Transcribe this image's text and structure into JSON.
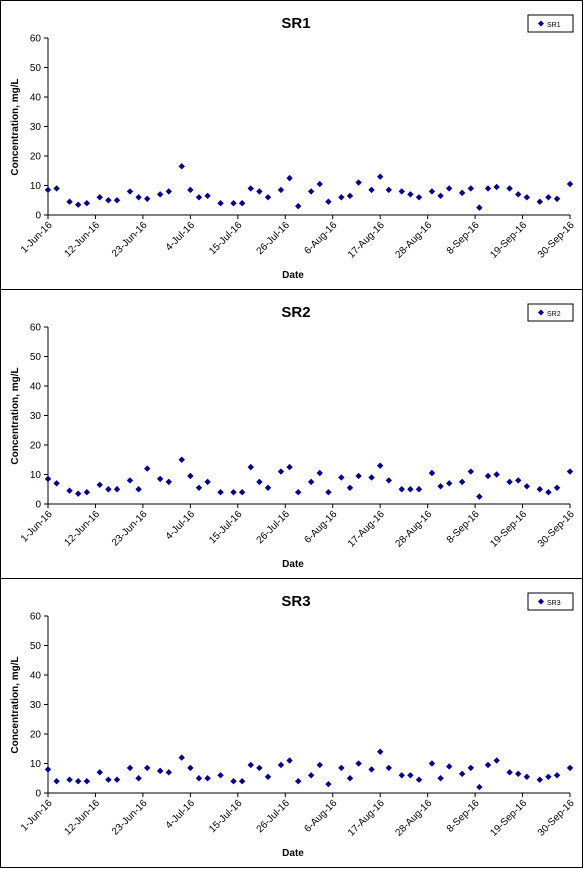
{
  "chart_data": [
    {
      "type": "scatter",
      "title": "SR1",
      "xlabel": "Date",
      "ylabel": "Concentration, mg/L",
      "ylim": [
        0,
        60
      ],
      "yticks": [
        "0",
        "10",
        "20",
        "30",
        "40",
        "50",
        "60"
      ],
      "xlim": [
        "2016-06-01",
        "2016-09-30"
      ],
      "xticks": [
        "1-Jun-16",
        "12-Jun-16",
        "23-Jun-16",
        "4-Jul-16",
        "15-Jul-16",
        "26-Jul-16",
        "6-Aug-16",
        "17-Aug-16",
        "28-Aug-16",
        "8-Sep-16",
        "19-Sep-16",
        "30-Sep-16"
      ],
      "legend": "top-right",
      "grid": false,
      "color": "#00008B",
      "series": [
        {
          "name": "SR1",
          "x": [
            "2016-06-01",
            "2016-06-03",
            "2016-06-06",
            "2016-06-08",
            "2016-06-10",
            "2016-06-13",
            "2016-06-15",
            "2016-06-17",
            "2016-06-20",
            "2016-06-22",
            "2016-06-24",
            "2016-06-27",
            "2016-06-29",
            "2016-07-02",
            "2016-07-04",
            "2016-07-06",
            "2016-07-08",
            "2016-07-11",
            "2016-07-14",
            "2016-07-16",
            "2016-07-18",
            "2016-07-20",
            "2016-07-22",
            "2016-07-25",
            "2016-07-27",
            "2016-07-29",
            "2016-08-01",
            "2016-08-03",
            "2016-08-05",
            "2016-08-08",
            "2016-08-10",
            "2016-08-12",
            "2016-08-15",
            "2016-08-17",
            "2016-08-19",
            "2016-08-22",
            "2016-08-24",
            "2016-08-26",
            "2016-08-29",
            "2016-08-31",
            "2016-09-02",
            "2016-09-05",
            "2016-09-07",
            "2016-09-09",
            "2016-09-11",
            "2016-09-13",
            "2016-09-16",
            "2016-09-18",
            "2016-09-20",
            "2016-09-23",
            "2016-09-25",
            "2016-09-27",
            "2016-09-30"
          ],
          "y": [
            8.5,
            9,
            4.5,
            3.5,
            4,
            6,
            5,
            5,
            8,
            6,
            5.5,
            7,
            8,
            16.5,
            8.5,
            6,
            6.5,
            4,
            4,
            4,
            9,
            8,
            6,
            8.5,
            12.5,
            3,
            8,
            10.5,
            4.5,
            6,
            6.5,
            11,
            8.5,
            13,
            8.5,
            8,
            7,
            6,
            8,
            6.5,
            9,
            7.5,
            9,
            2.5,
            9,
            9.5,
            9,
            7,
            6,
            4.5,
            6,
            5.5,
            10.5
          ]
        }
      ]
    },
    {
      "type": "scatter",
      "title": "SR2",
      "xlabel": "Date",
      "ylabel": "Concentration, mg/L",
      "ylim": [
        0,
        60
      ],
      "yticks": [
        "0",
        "10",
        "20",
        "30",
        "40",
        "50",
        "60"
      ],
      "xlim": [
        "2016-06-01",
        "2016-09-30"
      ],
      "xticks": [
        "1-Jun-16",
        "12-Jun-16",
        "23-Jun-16",
        "4-Jul-16",
        "15-Jul-16",
        "26-Jul-16",
        "6-Aug-16",
        "17-Aug-16",
        "28-Aug-16",
        "8-Sep-16",
        "19-Sep-16",
        "30-Sep-16"
      ],
      "legend": "top-right",
      "grid": false,
      "color": "#00008B",
      "series": [
        {
          "name": "SR2",
          "x": [
            "2016-06-01",
            "2016-06-03",
            "2016-06-06",
            "2016-06-08",
            "2016-06-10",
            "2016-06-13",
            "2016-06-15",
            "2016-06-17",
            "2016-06-20",
            "2016-06-22",
            "2016-06-24",
            "2016-06-27",
            "2016-06-29",
            "2016-07-02",
            "2016-07-04",
            "2016-07-06",
            "2016-07-08",
            "2016-07-11",
            "2016-07-14",
            "2016-07-16",
            "2016-07-18",
            "2016-07-20",
            "2016-07-22",
            "2016-07-25",
            "2016-07-27",
            "2016-07-29",
            "2016-08-01",
            "2016-08-03",
            "2016-08-05",
            "2016-08-08",
            "2016-08-10",
            "2016-08-12",
            "2016-08-15",
            "2016-08-17",
            "2016-08-19",
            "2016-08-22",
            "2016-08-24",
            "2016-08-26",
            "2016-08-29",
            "2016-08-31",
            "2016-09-02",
            "2016-09-05",
            "2016-09-07",
            "2016-09-09",
            "2016-09-11",
            "2016-09-13",
            "2016-09-16",
            "2016-09-18",
            "2016-09-20",
            "2016-09-23",
            "2016-09-25",
            "2016-09-27",
            "2016-09-30"
          ],
          "y": [
            8.5,
            7,
            4.5,
            3.5,
            4,
            6.5,
            5,
            5,
            8,
            5,
            12,
            8.5,
            7.5,
            15,
            9.5,
            5.5,
            7.5,
            4,
            4,
            4,
            12.5,
            7.5,
            5.5,
            11,
            12.5,
            4,
            7.5,
            10.5,
            4,
            9,
            5.5,
            9.5,
            9,
            13,
            8,
            5,
            5,
            5,
            10.5,
            6,
            7,
            7.5,
            11,
            2.5,
            9.5,
            10,
            7.5,
            8,
            6,
            5,
            4,
            5.5,
            11
          ]
        }
      ]
    },
    {
      "type": "scatter",
      "title": "SR3",
      "xlabel": "Date",
      "ylabel": "Concentration, mg/L",
      "ylim": [
        0,
        60
      ],
      "yticks": [
        "0",
        "10",
        "20",
        "30",
        "40",
        "50",
        "60"
      ],
      "xlim": [
        "2016-06-01",
        "2016-09-30"
      ],
      "xticks": [
        "1-Jun-16",
        "12-Jun-16",
        "23-Jun-16",
        "4-Jul-16",
        "15-Jul-16",
        "26-Jul-16",
        "6-Aug-16",
        "17-Aug-16",
        "28-Aug-16",
        "8-Sep-16",
        "19-Sep-16",
        "30-Sep-16"
      ],
      "legend": "top-right",
      "grid": false,
      "color": "#00008B",
      "series": [
        {
          "name": "SR3",
          "x": [
            "2016-06-01",
            "2016-06-03",
            "2016-06-06",
            "2016-06-08",
            "2016-06-10",
            "2016-06-13",
            "2016-06-15",
            "2016-06-17",
            "2016-06-20",
            "2016-06-22",
            "2016-06-24",
            "2016-06-27",
            "2016-06-29",
            "2016-07-02",
            "2016-07-04",
            "2016-07-06",
            "2016-07-08",
            "2016-07-11",
            "2016-07-14",
            "2016-07-16",
            "2016-07-18",
            "2016-07-20",
            "2016-07-22",
            "2016-07-25",
            "2016-07-27",
            "2016-07-29",
            "2016-08-01",
            "2016-08-03",
            "2016-08-05",
            "2016-08-08",
            "2016-08-10",
            "2016-08-12",
            "2016-08-15",
            "2016-08-17",
            "2016-08-19",
            "2016-08-22",
            "2016-08-24",
            "2016-08-26",
            "2016-08-29",
            "2016-08-31",
            "2016-09-02",
            "2016-09-05",
            "2016-09-07",
            "2016-09-09",
            "2016-09-11",
            "2016-09-13",
            "2016-09-16",
            "2016-09-18",
            "2016-09-20",
            "2016-09-23",
            "2016-09-25",
            "2016-09-27",
            "2016-09-30"
          ],
          "y": [
            8,
            4,
            4.5,
            4,
            4,
            7,
            4.5,
            4.5,
            8.5,
            5,
            8.5,
            7.5,
            7,
            12,
            8.5,
            5,
            5,
            6,
            4,
            4,
            9.5,
            8.5,
            5.5,
            9.5,
            11,
            4,
            6,
            9.5,
            3,
            8.5,
            5,
            10,
            8,
            14,
            8.5,
            6,
            6,
            4.5,
            10,
            5,
            9,
            6.5,
            8.5,
            2,
            9.5,
            11,
            7,
            6.5,
            5.5,
            4.5,
            5.5,
            6,
            8.5
          ]
        }
      ]
    }
  ]
}
